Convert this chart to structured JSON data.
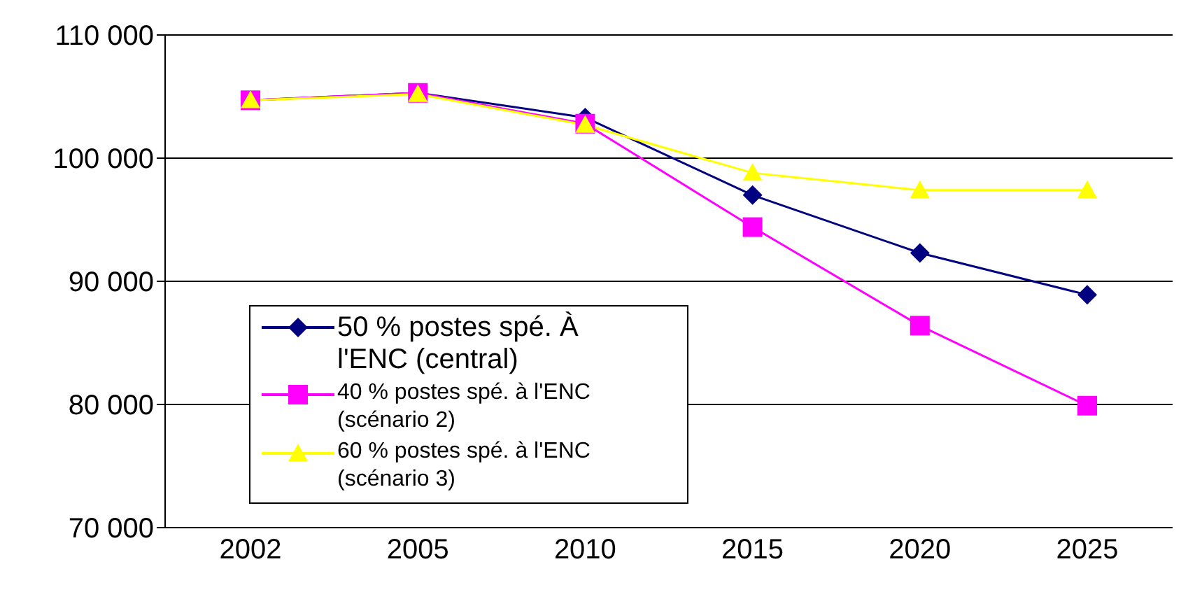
{
  "chart_data": {
    "type": "line",
    "categories": [
      "2002",
      "2005",
      "2010",
      "2015",
      "2020",
      "2025"
    ],
    "series": [
      {
        "name": "50 % postes spé. À l'ENC (central)",
        "color": "#000080",
        "marker": "diamond",
        "values": [
          104700,
          105300,
          103300,
          97000,
          92300,
          88900
        ]
      },
      {
        "name": "40 % postes spé. à l'ENC (scénario 2)",
        "color": "#ff00ff",
        "marker": "square",
        "values": [
          104700,
          105300,
          102800,
          94400,
          86400,
          79900
        ]
      },
      {
        "name": "60 % postes spé. à l'ENC (scénario 3)",
        "color": "#ffff00",
        "marker": "triangle",
        "values": [
          104700,
          105200,
          102700,
          98800,
          97400,
          97400
        ]
      }
    ],
    "ylim": [
      70000,
      110000
    ],
    "yticks": [
      {
        "value": 70000,
        "label": "70 000"
      },
      {
        "value": 80000,
        "label": "80 000"
      },
      {
        "value": 90000,
        "label": "90 000"
      },
      {
        "value": 100000,
        "label": "100 000"
      },
      {
        "value": 110000,
        "label": "110 000"
      }
    ],
    "grid": "y",
    "legend": "bottom left"
  }
}
